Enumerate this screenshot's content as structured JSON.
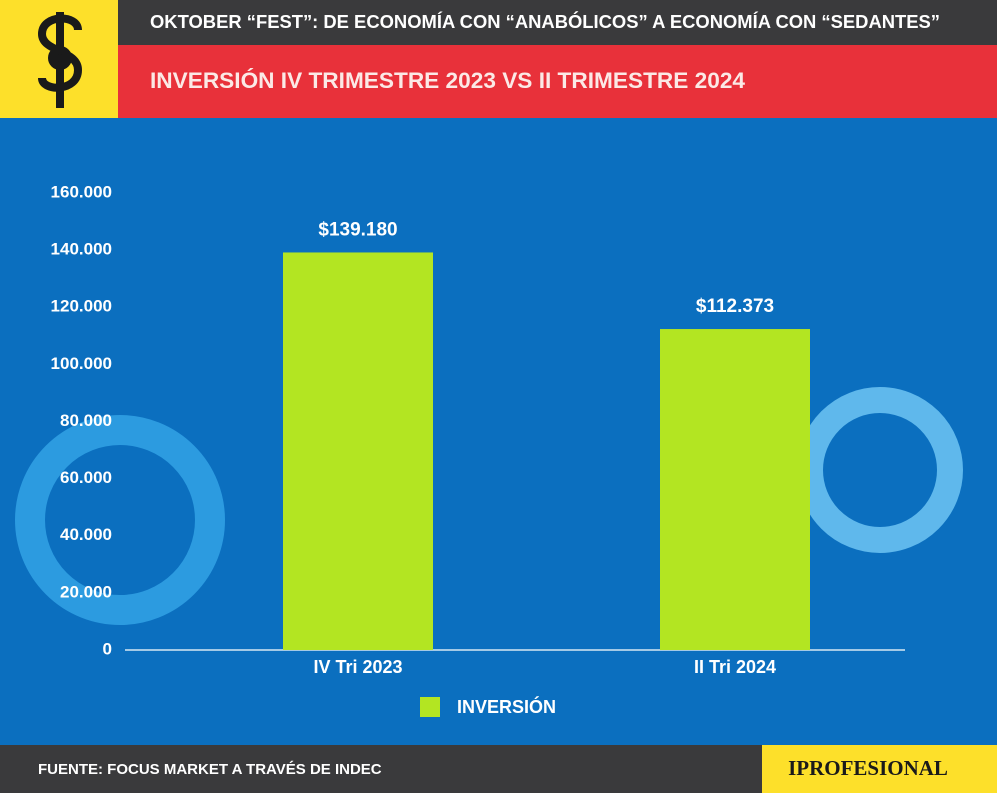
{
  "chart_data": {
    "type": "bar",
    "title": "OKTOBER “FEST”: DE ECONOMÍA CON “ANABÓLICOS” A ECONOMÍA CON “SEDANTES”",
    "subtitle": "INVERSIÓN IV TRIMESTRE 2023 VS II TRIMESTRE 2024",
    "source": "FUENTE: FOCUS MARKET A TRAVÉS DE INDEC",
    "brand": "IPROFESIONAL",
    "categories": [
      "IV Tri 2023",
      "II Tri 2024"
    ],
    "series": [
      {
        "name": "INVERSIÓN",
        "color": "#b3e522",
        "values": [
          139180,
          112373
        ],
        "value_labels": [
          "$139.180",
          "$112.373"
        ]
      }
    ],
    "ylim": [
      0,
      160000
    ],
    "yticks": [
      0,
      {
        "value": 20000,
        "label": "20.000"
      },
      {
        "value": 40000,
        "label": "40.000"
      },
      {
        "value": 60000,
        "label": "60.000"
      },
      {
        "value": 80000,
        "label": "80.000"
      },
      {
        "value": 100000,
        "label": "100.000"
      },
      {
        "value": 120000,
        "label": "120.000"
      },
      {
        "value": 140000,
        "label": "140.000"
      },
      {
        "value": 160000,
        "label": "160.000"
      }
    ]
  }
}
